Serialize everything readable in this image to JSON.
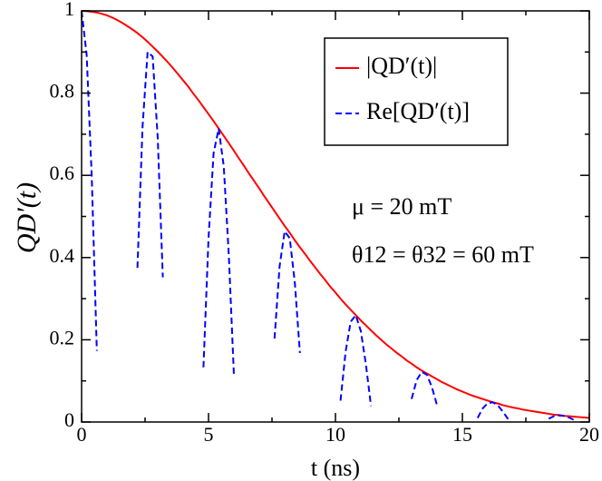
{
  "chart_data": {
    "type": "line",
    "xlabel": "t (ns)",
    "ylabel": "QD′(t)",
    "annotations": [
      "μ = 20 mT",
      "θ12 = θ32 = 60 mT"
    ],
    "x": [
      0,
      0.2,
      0.4,
      0.6,
      0.8,
      1,
      1.2,
      1.4,
      1.6,
      1.8,
      2,
      2.2,
      2.4,
      2.6,
      2.8,
      3,
      3.2,
      3.4,
      3.6,
      3.8,
      4,
      4.2,
      4.4,
      4.6,
      4.8,
      5,
      5.2,
      5.4,
      5.6,
      5.8,
      6,
      6.2,
      6.4,
      6.6,
      6.8,
      7,
      7.2,
      7.4,
      7.6,
      7.8,
      8,
      8.2,
      8.4,
      8.6,
      8.8,
      9,
      9.2,
      9.4,
      9.6,
      9.8,
      10,
      10.2,
      10.4,
      10.6,
      10.8,
      11,
      11.2,
      11.4,
      11.6,
      11.8,
      12,
      12.2,
      12.4,
      12.6,
      12.8,
      13,
      13.2,
      13.4,
      13.6,
      13.8,
      14,
      14.2,
      14.4,
      14.6,
      14.8,
      15,
      15.2,
      15.4,
      15.6,
      15.8,
      16,
      16.2,
      16.4,
      16.6,
      16.8,
      17,
      17.2,
      17.4,
      17.6,
      17.8,
      18,
      18.2,
      18.4,
      18.6,
      18.8,
      19,
      19.2,
      19.4,
      19.6,
      19.8,
      20
    ],
    "series": [
      {
        "name": "|QD′(t)|",
        "color": "#ff0000",
        "linestyle": "solid",
        "values": [
          1,
          0.9995,
          0.998,
          0.996,
          0.993,
          0.989,
          0.984,
          0.978,
          0.971,
          0.963,
          0.955,
          0.946,
          0.936,
          0.925,
          0.913,
          0.901,
          0.888,
          0.875,
          0.861,
          0.846,
          0.831,
          0.816,
          0.799,
          0.783,
          0.766,
          0.749,
          0.732,
          0.714,
          0.696,
          0.678,
          0.66,
          0.641,
          0.623,
          0.604,
          0.586,
          0.568,
          0.549,
          0.531,
          0.513,
          0.495,
          0.477,
          0.46,
          0.442,
          0.425,
          0.409,
          0.392,
          0.376,
          0.36,
          0.345,
          0.329,
          0.315,
          0.3,
          0.286,
          0.273,
          0.26,
          0.247,
          0.235,
          0.223,
          0.211,
          0.2,
          0.189,
          0.179,
          0.169,
          0.16,
          0.15,
          0.142,
          0.133,
          0.125,
          0.118,
          0.111,
          0.104,
          0.097,
          0.091,
          0.085,
          0.079,
          0.074,
          0.069,
          0.064,
          0.06,
          0.056,
          0.052,
          0.048,
          0.045,
          0.041,
          0.038,
          0.035,
          0.033,
          0.03,
          0.028,
          0.026,
          0.024,
          0.022,
          0.02,
          0.018,
          0.017,
          0.015,
          0.014,
          0.013,
          0.012,
          0.011,
          0.01
        ]
      },
      {
        "name": "Re[QD′(t)]",
        "color": "#0000ff",
        "linestyle": "dashed",
        "values": [
          1,
          0.893,
          0.596,
          0.173,
          null,
          null,
          null,
          null,
          null,
          null,
          null,
          0.375,
          0.717,
          0.9,
          0.889,
          0.69,
          0.352,
          null,
          null,
          null,
          null,
          null,
          null,
          null,
          0.133,
          0.447,
          0.654,
          0.714,
          0.622,
          0.405,
          0.114,
          null,
          null,
          null,
          null,
          null,
          null,
          null,
          0.203,
          0.379,
          0.464,
          0.447,
          0.339,
          0.168,
          null,
          null,
          null,
          null,
          null,
          null,
          null,
          0.052,
          0.171,
          0.244,
          0.26,
          0.221,
          0.14,
          0.039,
          null,
          null,
          null,
          null,
          null,
          null,
          null,
          0.056,
          0.102,
          0.122,
          0.115,
          0.085,
          0.041,
          null,
          null,
          null,
          null,
          null,
          null,
          null,
          0.01,
          0.033,
          0.046,
          0.048,
          0.04,
          0.025,
          0.007,
          null,
          null,
          null,
          null,
          null,
          null,
          null,
          0.008,
          0.014,
          0.016,
          0.015,
          0.011,
          0.005,
          null,
          null,
          null
        ]
      }
    ],
    "xlim": [
      0,
      20
    ],
    "xticks": [
      0,
      5,
      10,
      15,
      20
    ],
    "ylim": [
      0,
      1
    ],
    "yticks": [
      0,
      0.2,
      0.4,
      0.6,
      0.8,
      1
    ]
  }
}
